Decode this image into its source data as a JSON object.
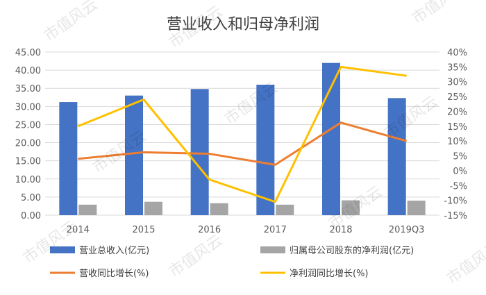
{
  "chart_data": {
    "type": "bar",
    "title": "营业收入和归母净利润",
    "categories": [
      "2014",
      "2015",
      "2016",
      "2017",
      "2018",
      "2019Q3"
    ],
    "y_left": {
      "min": 0,
      "max": 45,
      "step": 5,
      "tick_labels": [
        "0.00",
        "5.00",
        "10.00",
        "15.00",
        "20.00",
        "25.00",
        "30.00",
        "35.00",
        "40.00",
        "45.00"
      ]
    },
    "y_right": {
      "min": -15,
      "max": 40,
      "step": 5,
      "tick_labels": [
        "-15%",
        "-10%",
        "-5%",
        "0%",
        "5%",
        "10%",
        "15%",
        "20%",
        "25%",
        "30%",
        "35%",
        "40%"
      ]
    },
    "series": [
      {
        "name": "营业总收入(亿元)",
        "type": "bar",
        "axis": "left",
        "color": "#4472C4",
        "values": [
          31.2,
          33.0,
          34.8,
          36.0,
          42.0,
          32.3
        ]
      },
      {
        "name": "归属母公司股东的净利润(亿元)",
        "type": "bar",
        "axis": "left",
        "color": "#A5A5A5",
        "values": [
          2.9,
          3.7,
          3.3,
          2.9,
          4.1,
          4.0
        ]
      },
      {
        "name": "营收同比增长(%)",
        "type": "line",
        "axis": "right",
        "color": "#ED7D31",
        "values": [
          4.0,
          6.2,
          5.7,
          2.0,
          16.2,
          10.0
        ]
      },
      {
        "name": "净利润同比增长(%)",
        "type": "line",
        "axis": "right",
        "color": "#FFC000",
        "values": [
          15.0,
          24.0,
          -3.0,
          -10.5,
          35.0,
          32.0
        ]
      }
    ],
    "grid": true,
    "legend_position": "bottom"
  },
  "watermark": "市值风云"
}
